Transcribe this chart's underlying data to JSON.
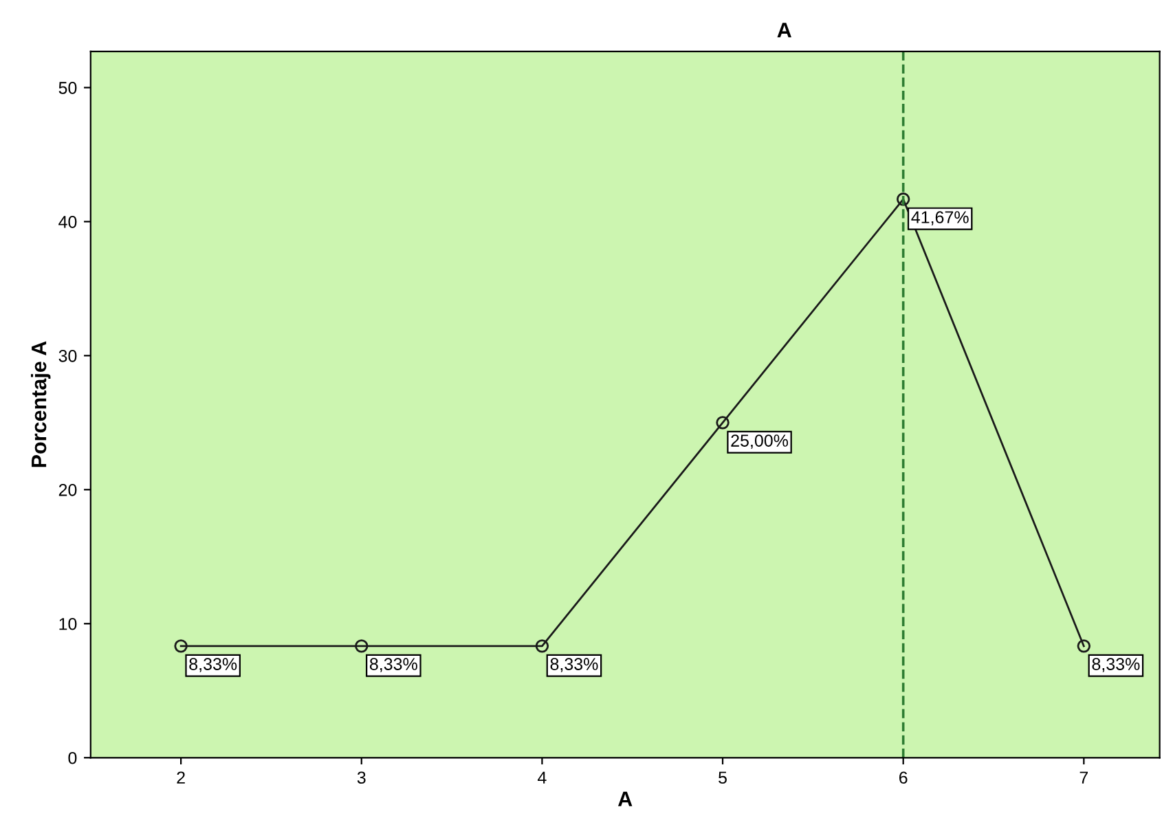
{
  "chart_data": {
    "type": "line",
    "title": "A",
    "xlabel": "A",
    "ylabel": "Porcentaje A",
    "x": [
      2,
      3,
      4,
      5,
      6,
      7
    ],
    "series": [
      {
        "color": "#1a1a1a",
        "values": [
          8.33,
          8.33,
          8.33,
          25.0,
          41.67,
          8.33
        ],
        "value_labels": [
          "8,33%",
          "8,33%",
          "8,33%",
          "25,00%",
          "41,67%",
          "8,33%"
        ]
      }
    ],
    "xlim": [
      1.5,
      7.42
    ],
    "ylim": [
      0,
      52.7
    ],
    "xticks": [
      2,
      3,
      4,
      5,
      6,
      7
    ],
    "yticks": [
      0,
      10,
      20,
      30,
      40,
      50
    ],
    "ref_lines": [
      {
        "axis": "x",
        "value": 6,
        "color": "#2e7d32",
        "line_style": "dashed"
      }
    ],
    "marker": "circle",
    "line_style": "solid",
    "grid": false,
    "legend": false
  }
}
